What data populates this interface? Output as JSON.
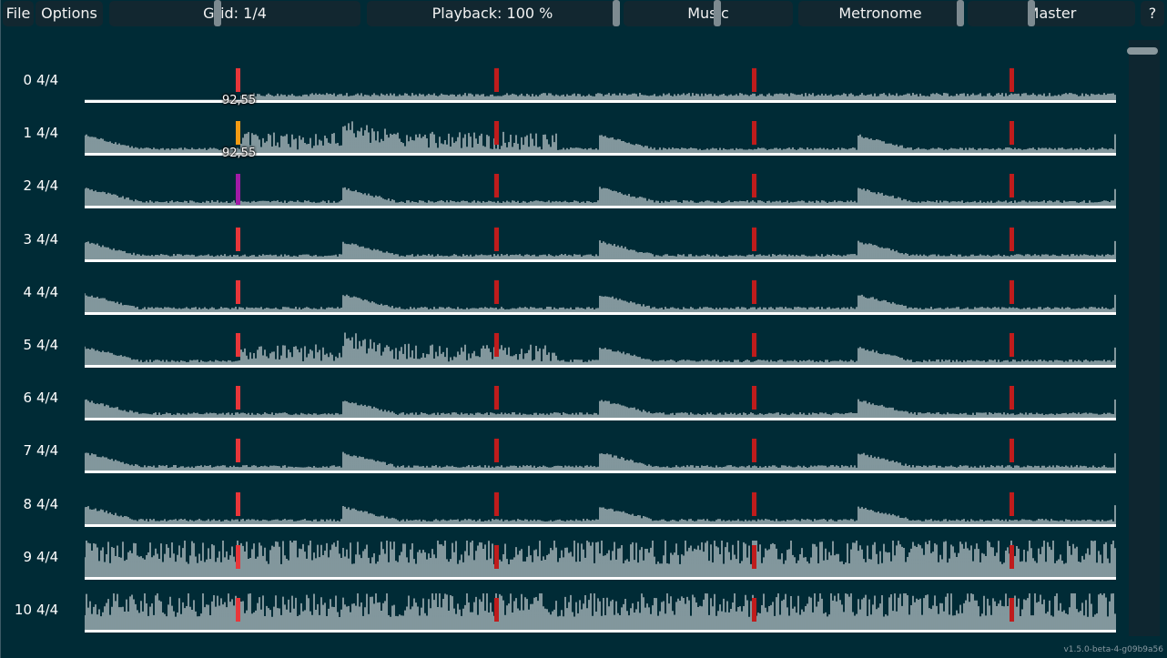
{
  "menubar": {
    "file": "File",
    "options": "Options",
    "grid": "Grid: 1/4",
    "playback": "Playback: 100 %",
    "music": "Music",
    "metronome": "Metronome",
    "master": "Master",
    "help": "?"
  },
  "tempo_markers": [
    "92,55",
    "92,55"
  ],
  "rows": [
    {
      "index": "0",
      "time_signature": "4/4"
    },
    {
      "index": "1",
      "time_signature": "4/4"
    },
    {
      "index": "2",
      "time_signature": "4/4"
    },
    {
      "index": "3",
      "time_signature": "4/4"
    },
    {
      "index": "4",
      "time_signature": "4/4"
    },
    {
      "index": "5",
      "time_signature": "4/4"
    },
    {
      "index": "6",
      "time_signature": "4/4"
    },
    {
      "index": "7",
      "time_signature": "4/4"
    },
    {
      "index": "8",
      "time_signature": "4/4"
    },
    {
      "index": "9",
      "time_signature": "4/4"
    },
    {
      "index": "10",
      "time_signature": "4/4"
    }
  ],
  "version": "v1.5.0-beta-4-g09b9a56",
  "colors": {
    "background": "#002b36",
    "waveform": "#ffffff",
    "beat_marker": "#bf1c1c",
    "downbeat_marker": "#e8363a",
    "selected_marker": "#f29b14",
    "cursor_marker": "#a11ba6"
  }
}
